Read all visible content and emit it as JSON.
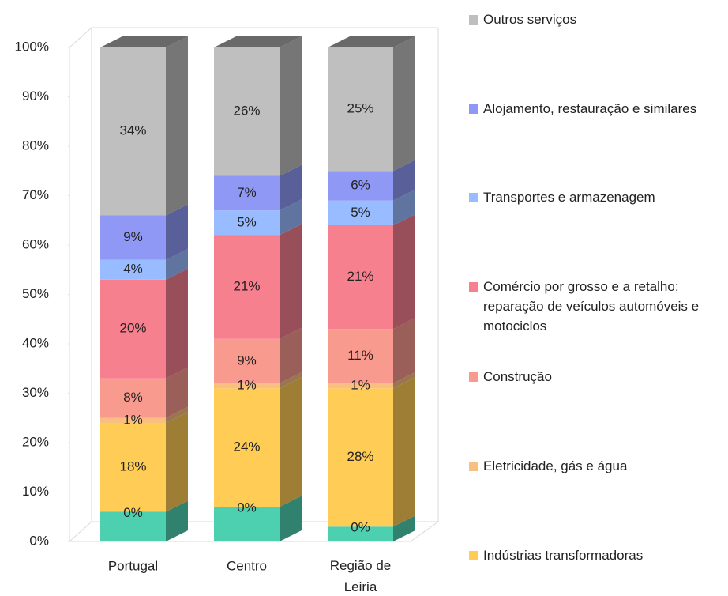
{
  "chart_data": {
    "type": "bar3d_stacked",
    "categories": [
      "Portugal",
      "Centro",
      "Região de Leiria"
    ],
    "ylim": [
      0,
      100
    ],
    "yticks": [
      {
        "value": 0,
        "label": "0%"
      },
      {
        "value": 10,
        "label": "10%"
      },
      {
        "value": 20,
        "label": "20%"
      },
      {
        "value": 30,
        "label": "30%"
      },
      {
        "value": 40,
        "label": "40%"
      },
      {
        "value": 50,
        "label": "50%"
      },
      {
        "value": 60,
        "label": "60%"
      },
      {
        "value": 70,
        "label": "70%"
      },
      {
        "value": 80,
        "label": "80%"
      },
      {
        "value": 90,
        "label": "90%"
      },
      {
        "value": 100,
        "label": "100%"
      }
    ],
    "series": [
      {
        "color": "#4dd0b0",
        "values": [
          6,
          7,
          3
        ]
      },
      {
        "values": [
          0,
          0,
          0
        ],
        "value_labels": [
          "0%",
          "0%",
          "0%"
        ]
      },
      {
        "name": "Indústrias transformadoras",
        "color": "#ffcc55",
        "values": [
          18,
          24,
          28
        ],
        "value_labels": [
          "18%",
          "24%",
          "28%"
        ]
      },
      {
        "name": "Eletricidade, gás e água",
        "color": "#f9bf80",
        "values": [
          1,
          1,
          1
        ],
        "value_labels": [
          "1%",
          "1%",
          "1%"
        ]
      },
      {
        "name": "Construção",
        "color": "#f99a8f",
        "values": [
          8,
          9,
          11
        ],
        "value_labels": [
          "8%",
          "9%",
          "11%"
        ]
      },
      {
        "name": "Comércio por grosso e a retalho; reparação de veículos automóveis e motociclos",
        "color": "#f7808f",
        "values": [
          20,
          21,
          21
        ],
        "value_labels": [
          "20%",
          "21%",
          "21%"
        ]
      },
      {
        "name": "Transportes e armazenagem",
        "color": "#99bbff",
        "values": [
          4,
          5,
          5
        ],
        "value_labels": [
          "4%",
          "5%",
          "5%"
        ]
      },
      {
        "name": "Alojamento, restauração e similares",
        "color": "#8f99f5",
        "values": [
          9,
          7,
          6
        ],
        "value_labels": [
          "9%",
          "7%",
          "6%"
        ]
      },
      {
        "name": "Outros serviços",
        "color": "#bfbfbf",
        "values": [
          34,
          26,
          25
        ],
        "value_labels": [
          "34%",
          "26%",
          "25%"
        ]
      }
    ]
  }
}
